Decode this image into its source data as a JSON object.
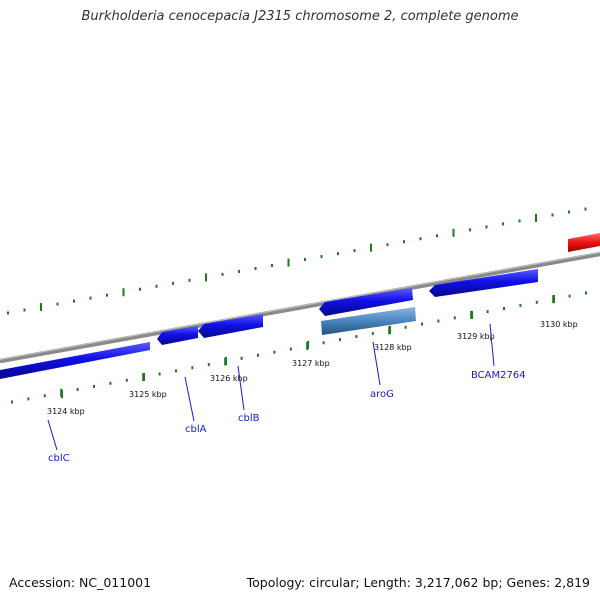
{
  "title": "Burkholderia cenocepacia J2315 chromosome 2, complete genome",
  "footer": {
    "accession": "Accession: NC_011001",
    "summary": "Topology: circular; Length: 3,217,062 bp; Genes: 2,819"
  },
  "ruler": {
    "ticks": [
      "3124 kbp",
      "3125 kbp",
      "3126 kbp",
      "3127 kbp",
      "3128 kbp",
      "3129 kbp",
      "3130 kbp"
    ]
  },
  "genes": {
    "labels": [
      "cblC",
      "cblA",
      "cblB",
      "aroG",
      "BCAM2764"
    ]
  },
  "colors": {
    "backbone": "#888888",
    "gene_blue": "#1010e0",
    "gene_steel": "#4a86c0",
    "gene_red": "#ee1111",
    "tick_green": "#1f7a1f",
    "label_blue": "#1a1acc"
  },
  "icons": []
}
